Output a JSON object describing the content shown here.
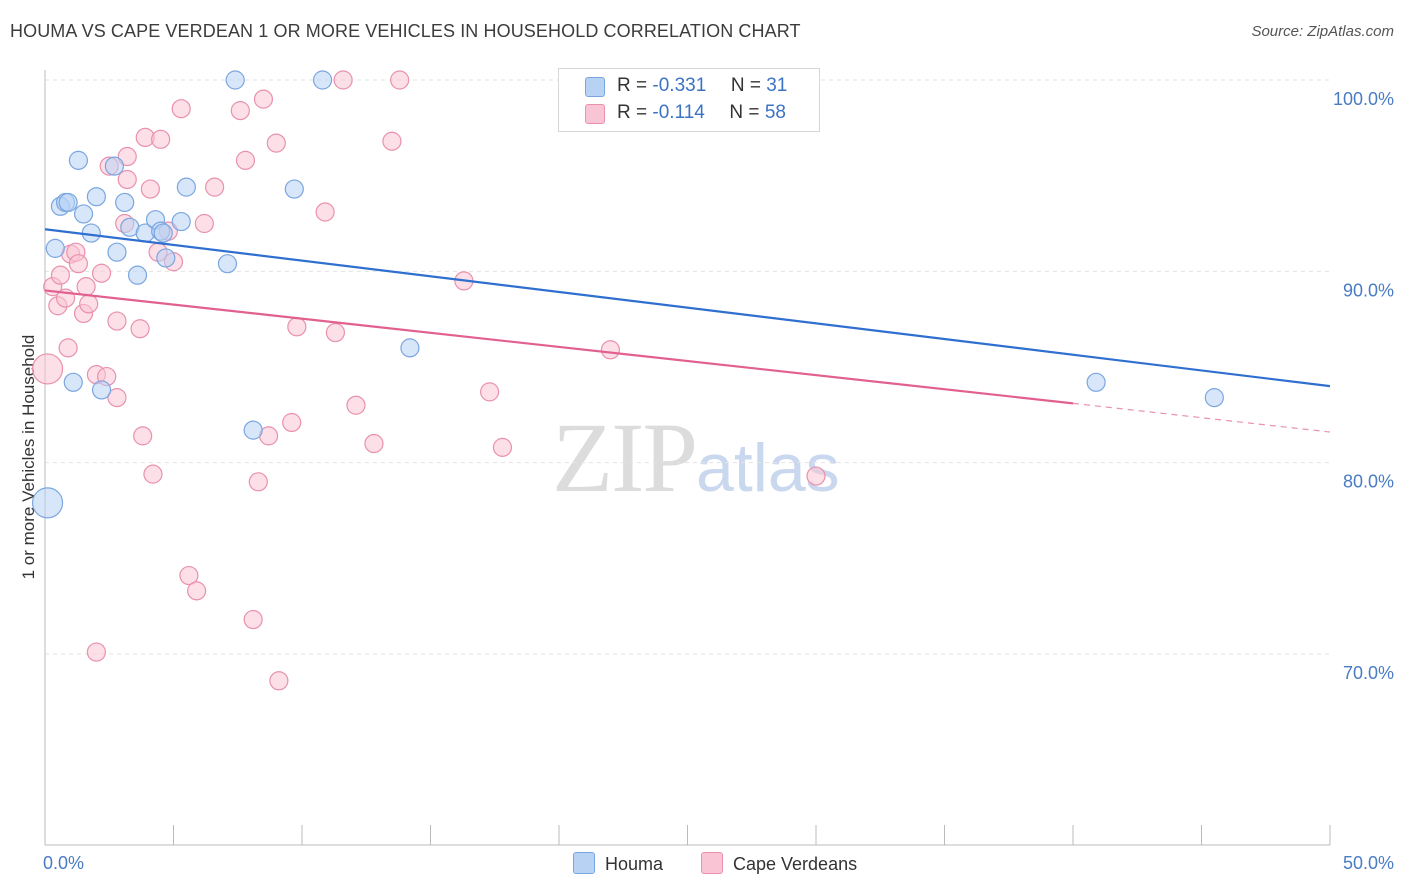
{
  "title": "HOUMA VS CAPE VERDEAN 1 OR MORE VEHICLES IN HOUSEHOLD CORRELATION CHART",
  "source": "Source: ZipAtlas.com",
  "watermark": {
    "zip": "ZIP",
    "atlas": "atlas"
  },
  "legend": {
    "houma": {
      "r_label": "R =",
      "r_value": "-0.331",
      "n_label": "N =",
      "n_value": "31"
    },
    "cape": {
      "r_label": "R =",
      "r_value": "-0.114",
      "n_label": "N =",
      "n_value": "58"
    }
  },
  "bottom_legend": {
    "houma": "Houma",
    "cape": "Cape Verdeans"
  },
  "colors": {
    "houma_fill": "#b8d2f4",
    "houma_stroke": "#7aa6e0",
    "houma_line": "#2f6fd0",
    "cape_fill": "#f9c5d4",
    "cape_stroke": "#e991ad",
    "cape_line": "#e2608f",
    "tick_text": "#4a7cc4",
    "grid": "#e3e3e3"
  },
  "chart_data": {
    "type": "scatter",
    "title": "HOUMA VS CAPE VERDEAN 1 OR MORE VEHICLES IN HOUSEHOLD CORRELATION CHART",
    "xlabel": "",
    "ylabel": "1 or more Vehicles in Household",
    "xlim": [
      0,
      50
    ],
    "ylim": [
      60,
      100
    ],
    "x_tick_labels": [
      "0.0%",
      "50.0%"
    ],
    "y_ticks": [
      70,
      80,
      90,
      100
    ],
    "y_tick_labels": [
      "70.0%",
      "80.0%",
      "90.0%",
      "100.0%"
    ],
    "grid": true,
    "legend_placement": "top-center",
    "series": [
      {
        "name": "Houma",
        "r": -0.331,
        "n": 31,
        "trend": {
          "x": [
            0,
            50
          ],
          "y": [
            92.2,
            84.0
          ]
        },
        "points": [
          [
            0.1,
            77.9
          ],
          [
            0.4,
            91.2
          ],
          [
            0.6,
            93.4
          ],
          [
            0.8,
            93.6
          ],
          [
            0.9,
            93.6
          ],
          [
            1.1,
            84.2
          ],
          [
            1.3,
            95.8
          ],
          [
            1.5,
            93.0
          ],
          [
            1.8,
            92.0
          ],
          [
            2.0,
            93.9
          ],
          [
            2.2,
            83.8
          ],
          [
            2.7,
            95.5
          ],
          [
            2.8,
            91.0
          ],
          [
            3.1,
            93.6
          ],
          [
            3.3,
            92.3
          ],
          [
            3.6,
            89.8
          ],
          [
            3.9,
            92.0
          ],
          [
            4.3,
            92.7
          ],
          [
            4.5,
            92.1
          ],
          [
            4.7,
            90.7
          ],
          [
            5.3,
            92.6
          ],
          [
            5.5,
            94.4
          ],
          [
            7.1,
            90.4
          ],
          [
            7.4,
            100.0
          ],
          [
            8.1,
            81.7
          ],
          [
            9.7,
            94.3
          ],
          [
            10.8,
            100.0
          ],
          [
            14.2,
            86.0
          ],
          [
            40.9,
            84.2
          ],
          [
            45.5,
            83.4
          ],
          [
            4.6,
            92.0
          ]
        ]
      },
      {
        "name": "Cape Verdeans",
        "r": -0.114,
        "n": 58,
        "trend": {
          "x": [
            0,
            40
          ],
          "y": [
            89.0,
            83.1
          ]
        },
        "trend_dashed": {
          "x": [
            40,
            50
          ],
          "y": [
            83.1,
            81.6
          ]
        },
        "points": [
          [
            0.1,
            84.9
          ],
          [
            0.3,
            89.2
          ],
          [
            0.5,
            88.2
          ],
          [
            0.6,
            89.8
          ],
          [
            0.8,
            88.6
          ],
          [
            0.9,
            86.0
          ],
          [
            1.0,
            90.9
          ],
          [
            1.2,
            91.0
          ],
          [
            1.3,
            90.4
          ],
          [
            1.5,
            87.8
          ],
          [
            1.6,
            89.2
          ],
          [
            1.7,
            88.3
          ],
          [
            2.0,
            84.6
          ],
          [
            2.0,
            70.1
          ],
          [
            2.2,
            89.9
          ],
          [
            2.4,
            84.5
          ],
          [
            2.5,
            95.5
          ],
          [
            2.8,
            87.4
          ],
          [
            2.8,
            83.4
          ],
          [
            3.1,
            92.5
          ],
          [
            3.2,
            94.8
          ],
          [
            3.2,
            96.0
          ],
          [
            3.7,
            87.0
          ],
          [
            3.8,
            81.4
          ],
          [
            3.9,
            97.0
          ],
          [
            4.1,
            94.3
          ],
          [
            4.2,
            79.4
          ],
          [
            4.4,
            91.0
          ],
          [
            4.5,
            96.9
          ],
          [
            4.8,
            92.1
          ],
          [
            5.0,
            90.5
          ],
          [
            5.3,
            98.5
          ],
          [
            5.6,
            74.1
          ],
          [
            5.9,
            73.3
          ],
          [
            6.2,
            92.5
          ],
          [
            6.6,
            94.4
          ],
          [
            7.6,
            98.4
          ],
          [
            7.8,
            95.8
          ],
          [
            8.1,
            71.8
          ],
          [
            8.3,
            79.0
          ],
          [
            8.5,
            99.0
          ],
          [
            8.7,
            81.4
          ],
          [
            9.0,
            96.7
          ],
          [
            9.1,
            68.6
          ],
          [
            9.6,
            82.1
          ],
          [
            9.8,
            87.1
          ],
          [
            10.9,
            93.1
          ],
          [
            11.3,
            86.8
          ],
          [
            11.6,
            100.0
          ],
          [
            12.1,
            83.0
          ],
          [
            12.8,
            81.0
          ],
          [
            13.5,
            96.8
          ],
          [
            13.8,
            100.0
          ],
          [
            16.3,
            89.5
          ],
          [
            17.3,
            83.7
          ],
          [
            17.8,
            80.8
          ],
          [
            22.0,
            85.9
          ],
          [
            30.0,
            79.3
          ]
        ]
      }
    ]
  }
}
